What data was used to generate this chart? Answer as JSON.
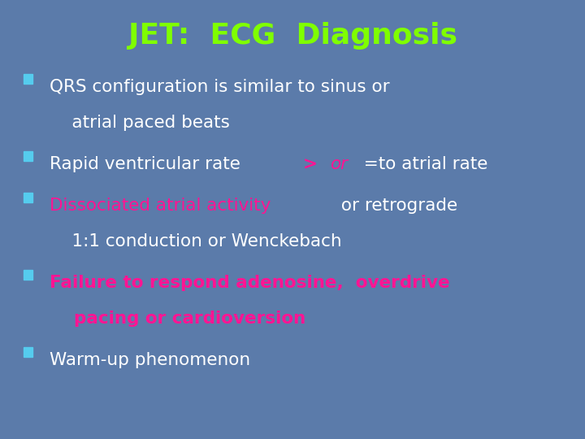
{
  "title": "JET:  ECG  Diagnosis",
  "title_color": "#7FFF00",
  "background_color": "#5B7BAA",
  "bullet_color": "#55CCEE",
  "figsize": [
    7.2,
    5.4
  ],
  "dpi": 100,
  "font_family": "Comic Sans MS",
  "title_fontsize": 26,
  "body_fontsize": 15.5,
  "bullet_items": [
    {
      "lines": [
        [
          {
            "text": "QRS configuration is similar to sinus or",
            "color": "#FFFFFF",
            "bold": false
          }
        ],
        [
          {
            "text": "    atrial paced beats",
            "color": "#FFFFFF",
            "bold": false
          }
        ]
      ]
    },
    {
      "lines": [
        [
          {
            "text": "Rapid ventricular rate ",
            "color": "#FFFFFF",
            "bold": false
          },
          {
            "text": "> ",
            "color": "#FF1493",
            "bold": true
          },
          {
            "text": "or",
            "color": "#FF1493",
            "bold": false,
            "italic": true
          },
          {
            "text": "  =to atrial rate",
            "color": "#FFFFFF",
            "bold": false
          }
        ]
      ]
    },
    {
      "lines": [
        [
          {
            "text": "Dissociated atrial activity",
            "color": "#FF1493",
            "bold": false
          },
          {
            "text": " or retrograde",
            "color": "#FFFFFF",
            "bold": false
          }
        ],
        [
          {
            "text": "    1:1 conduction or Wenckebach",
            "color": "#FFFFFF",
            "bold": false
          }
        ]
      ]
    },
    {
      "lines": [
        [
          {
            "text": "Failure to respond adenosine,  overdrive",
            "color": "#FF1493",
            "bold": true
          }
        ],
        [
          {
            "text": "    pacing or cardioversion",
            "color": "#FF1493",
            "bold": true
          }
        ]
      ]
    },
    {
      "lines": [
        [
          {
            "text": "Warm-up phenomenon",
            "color": "#FFFFFF",
            "bold": false
          }
        ]
      ]
    }
  ]
}
